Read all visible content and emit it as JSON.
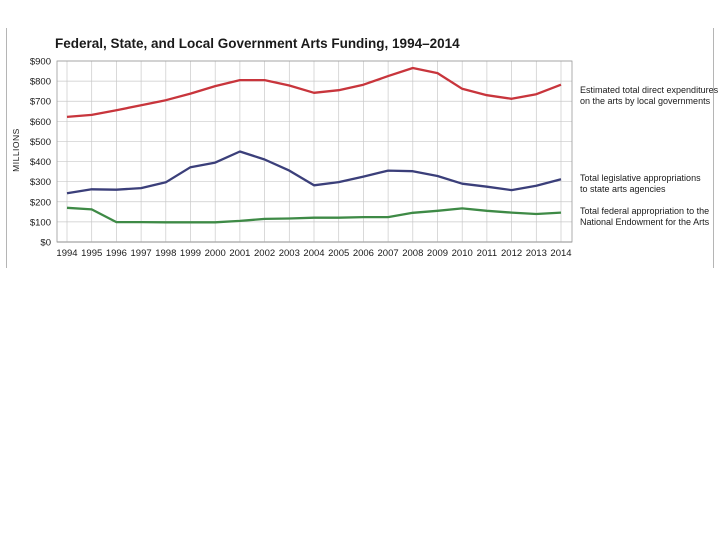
{
  "chart_data": {
    "type": "line",
    "title": "Federal, State, and Local Government Arts Funding, 1994–2014",
    "ylabel": "MILLIONS",
    "xlabel": "",
    "x": [
      "1994",
      "1995",
      "1996",
      "1997",
      "1998",
      "1999",
      "2000",
      "2001",
      "2002",
      "2003",
      "2004",
      "2005",
      "2006",
      "2007",
      "2008",
      "2009",
      "2010",
      "2011",
      "2012",
      "2013",
      "2014"
    ],
    "yticks": [
      "$0",
      "$100",
      "$200",
      "$300",
      "$400",
      "$500",
      "$600",
      "$700",
      "$800",
      "$900"
    ],
    "ylim": [
      0,
      900
    ],
    "grid": true,
    "legend_placement": "right",
    "series": [
      {
        "name": "Estimated total direct expenditures on the arts by local governments",
        "label_lines": [
          "Estimated total direct expenditures",
          "on the arts by local governments"
        ],
        "color": "#c8353c",
        "values": [
          622,
          632,
          655,
          680,
          705,
          738,
          775,
          805,
          805,
          778,
          742,
          755,
          782,
          825,
          865,
          840,
          762,
          730,
          712,
          735,
          782
        ]
      },
      {
        "name": "Total legislative appropriations to state arts agencies",
        "label_lines": [
          "Total legislative appropriations",
          "to state arts agencies"
        ],
        "color": "#3b3f7a",
        "values": [
          242,
          262,
          260,
          268,
          297,
          372,
          395,
          450,
          410,
          355,
          282,
          298,
          325,
          355,
          352,
          328,
          290,
          275,
          258,
          280,
          312
        ]
      },
      {
        "name": "Total federal appropriation to the National Endowment for the Arts",
        "label_lines": [
          "Total federal appropriation to the",
          "National Endowment for the Arts"
        ],
        "color": "#3e8a46",
        "values": [
          170,
          162,
          99,
          99,
          98,
          98,
          98,
          105,
          115,
          117,
          121,
          121,
          124,
          124,
          145,
          155,
          167,
          155,
          146,
          139,
          146
        ]
      }
    ]
  }
}
